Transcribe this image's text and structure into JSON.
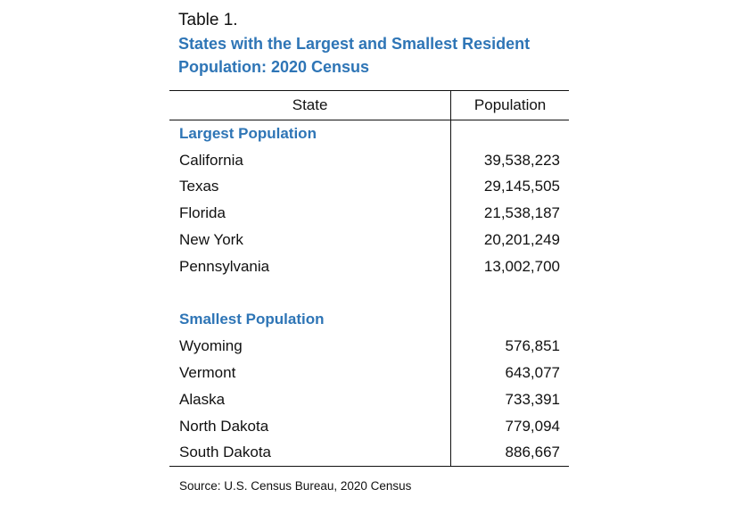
{
  "table_number": "Table 1.",
  "title_line1": "States with the Largest and Smallest Resident",
  "title_line2": "Population:  2020 Census",
  "columns": {
    "state": "State",
    "population": "Population"
  },
  "largest": {
    "heading": "Largest Population",
    "rows": [
      {
        "state": "California",
        "population": "39,538,223"
      },
      {
        "state": "Texas",
        "population": "29,145,505"
      },
      {
        "state": "Florida",
        "population": "21,538,187"
      },
      {
        "state": "New York",
        "population": "20,201,249"
      },
      {
        "state": "Pennsylvania",
        "population": "13,002,700"
      }
    ]
  },
  "smallest": {
    "heading": "Smallest Population",
    "rows": [
      {
        "state": "Wyoming",
        "population": "576,851"
      },
      {
        "state": "Vermont",
        "population": "643,077"
      },
      {
        "state": "Alaska",
        "population": "733,391"
      },
      {
        "state": "North Dakota",
        "population": "779,094"
      },
      {
        "state": "South Dakota",
        "population": "886,667"
      }
    ]
  },
  "source": "Source: U.S. Census Bureau, 2020 Census",
  "colors": {
    "title": "#2e75b6",
    "text": "#111111",
    "rule": "#111111"
  }
}
